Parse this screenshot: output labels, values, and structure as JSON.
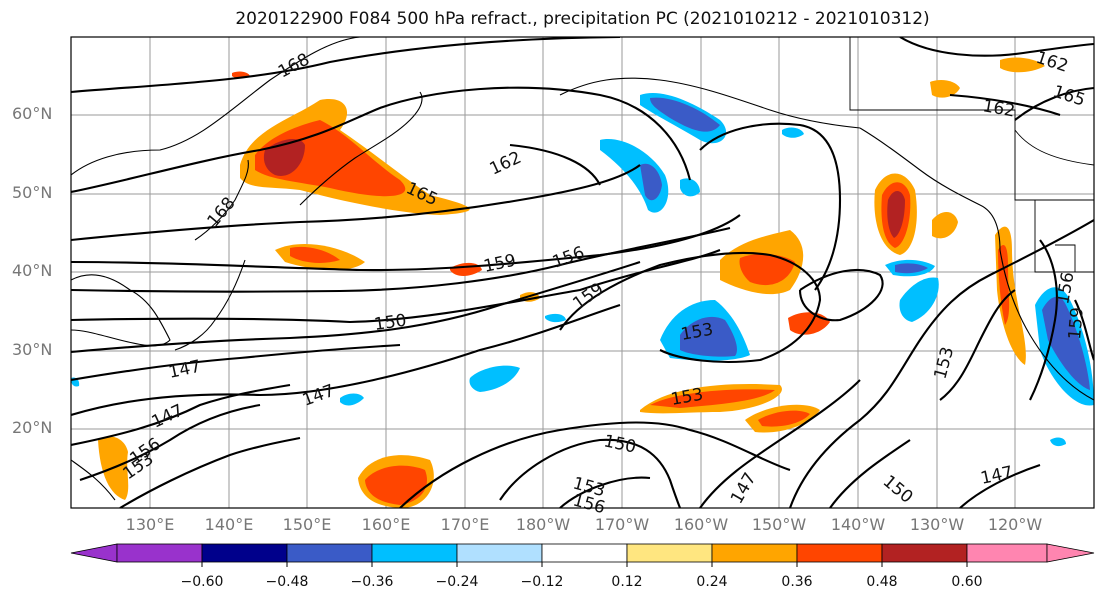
{
  "title": "2020122900 F084 500 hPa refract., precipitation PC (2021010212 - 2021010312)",
  "lat_labels": [
    "60°N",
    "50°N",
    "40°N",
    "30°N",
    "20°N"
  ],
  "lon_labels": [
    "130°E",
    "140°E",
    "150°E",
    "160°E",
    "170°E",
    "180°W",
    "170°W",
    "160°W",
    "150°W",
    "140°W",
    "130°W",
    "120°W"
  ],
  "colorbar": {
    "ticks": [
      "−0.60",
      "−0.48",
      "−0.36",
      "−0.24",
      "−0.12",
      "0.12",
      "0.24",
      "0.36",
      "0.48",
      "0.60"
    ],
    "colors": [
      "#9932CC",
      "#00008B",
      "#3A5BC7",
      "#00BFFF",
      "#B0E0FF",
      "#FFFFFF",
      "#FFE680",
      "#FFA500",
      "#FF4500",
      "#B22222",
      "#FF85B0"
    ]
  },
  "contour_labels": [
    "168",
    "168",
    "165",
    "165",
    "162",
    "162",
    "162",
    "159",
    "159",
    "159",
    "156",
    "156",
    "156",
    "153",
    "153",
    "153",
    "153",
    "150",
    "150",
    "150",
    "147",
    "147",
    "147",
    "147",
    "147",
    "153",
    "156"
  ]
}
